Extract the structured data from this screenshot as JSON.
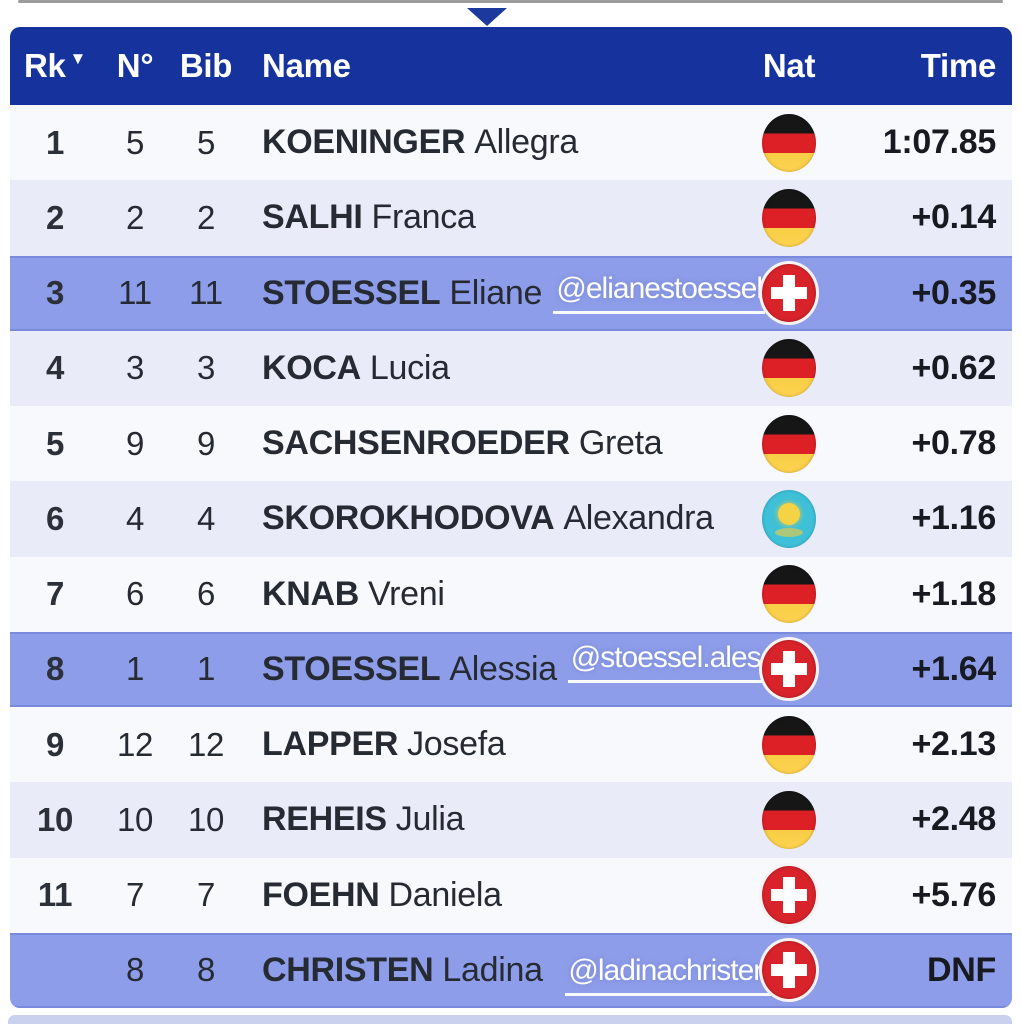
{
  "table": {
    "columns": {
      "rank": "Rk",
      "n": "N°",
      "bib": "Bib",
      "name": "Name",
      "nat": "Nat",
      "time": "Time"
    },
    "sort_indicator": "▼",
    "rows": [
      {
        "rank": "1",
        "n": "5",
        "bib": "5",
        "surname": "KOENINGER",
        "given": "Allegra",
        "nat": "GER",
        "time": "1:07.85",
        "highlight": false,
        "handle": ""
      },
      {
        "rank": "2",
        "n": "2",
        "bib": "2",
        "surname": "SALHI",
        "given": "Franca",
        "nat": "GER",
        "time": "+0.14",
        "highlight": false,
        "handle": ""
      },
      {
        "rank": "3",
        "n": "11",
        "bib": "11",
        "surname": "STOESSEL",
        "given": "Eliane",
        "nat": "SUI",
        "time": "+0.35",
        "highlight": true,
        "handle": "@elianestoessel"
      },
      {
        "rank": "4",
        "n": "3",
        "bib": "3",
        "surname": "KOCA",
        "given": "Lucia",
        "nat": "GER",
        "time": "+0.62",
        "highlight": false,
        "handle": ""
      },
      {
        "rank": "5",
        "n": "9",
        "bib": "9",
        "surname": "SACHSENROEDER",
        "given": "Greta",
        "nat": "GER",
        "time": "+0.78",
        "highlight": false,
        "handle": ""
      },
      {
        "rank": "6",
        "n": "4",
        "bib": "4",
        "surname": "SKOROKHODOVA",
        "given": "Alexandra",
        "nat": "KAZ",
        "time": "+1.16",
        "highlight": false,
        "handle": ""
      },
      {
        "rank": "7",
        "n": "6",
        "bib": "6",
        "surname": "KNAB",
        "given": "Vreni",
        "nat": "GER",
        "time": "+1.18",
        "highlight": false,
        "handle": ""
      },
      {
        "rank": "8",
        "n": "1",
        "bib": "1",
        "surname": "STOESSEL",
        "given": "Alessia",
        "nat": "SUI",
        "time": "+1.64",
        "highlight": true,
        "handle": "@stoessel.alessia"
      },
      {
        "rank": "9",
        "n": "12",
        "bib": "12",
        "surname": "LAPPER",
        "given": "Josefa",
        "nat": "GER",
        "time": "+2.13",
        "highlight": false,
        "handle": ""
      },
      {
        "rank": "10",
        "n": "10",
        "bib": "10",
        "surname": "REHEIS",
        "given": "Julia",
        "nat": "GER",
        "time": "+2.48",
        "highlight": false,
        "handle": ""
      },
      {
        "rank": "11",
        "n": "7",
        "bib": "7",
        "surname": "FOEHN",
        "given": "Daniela",
        "nat": "SUI",
        "time": "+5.76",
        "highlight": false,
        "handle": ""
      },
      {
        "rank": "",
        "n": "8",
        "bib": "8",
        "surname": "CHRISTEN",
        "given": "Ladina",
        "nat": "SUI",
        "time": "DNF",
        "highlight": true,
        "handle": "@ladinachristen"
      }
    ]
  },
  "colors": {
    "header_bg": "#16339d",
    "highlight_row_bg": "#8e9de9",
    "row_light_bg": "#f8f9fd",
    "row_alt_bg": "#e9ecf8",
    "header_text": "#ffffff",
    "body_text": "#262a33",
    "swiss_flag_red": "#d8232b",
    "german_flag_red": "#dd2025",
    "german_flag_gold": "#f7ce46",
    "kazakh_flag_blue": "#3ec0d8",
    "mention_text": "#ffffff",
    "bottom_strip": "#c9d1ee"
  }
}
